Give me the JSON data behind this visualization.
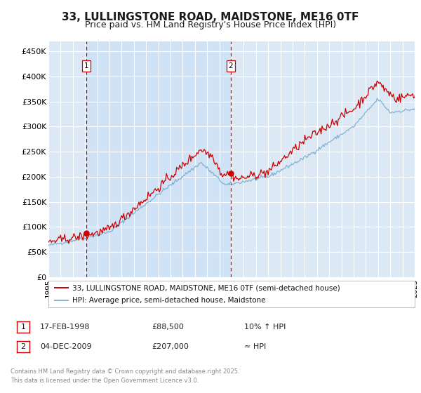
{
  "title": "33, LULLINGSTONE ROAD, MAIDSTONE, ME16 0TF",
  "subtitle": "Price paid vs. HM Land Registry's House Price Index (HPI)",
  "background_color": "#ffffff",
  "plot_bg_color": "#dce9f5",
  "grid_color": "#ffffff",
  "ylim": [
    0,
    470000
  ],
  "yticks": [
    0,
    50000,
    100000,
    150000,
    200000,
    250000,
    300000,
    350000,
    400000,
    450000
  ],
  "ytick_labels": [
    "£0",
    "£50K",
    "£100K",
    "£150K",
    "£200K",
    "£250K",
    "£300K",
    "£350K",
    "£400K",
    "£450K"
  ],
  "x_start_year": 1995,
  "x_end_year": 2025,
  "vline1_year": 1998.12,
  "vline2_year": 2009.92,
  "marker1_year": 1998.12,
  "marker1_value": 88500,
  "marker2_year": 2009.92,
  "marker2_value": 207000,
  "line1_color": "#cc0000",
  "line2_color": "#7fb3d3",
  "vline_color": "#cc0000",
  "shade_color": "#cce0f5",
  "marker_color": "#cc0000",
  "legend_line1": "33, LULLINGSTONE ROAD, MAIDSTONE, ME16 0TF (semi-detached house)",
  "legend_line2": "HPI: Average price, semi-detached house, Maidstone",
  "annotation1_label": "1",
  "annotation1_date": "17-FEB-1998",
  "annotation1_price": "£88,500",
  "annotation1_hpi": "10% ↑ HPI",
  "annotation2_label": "2",
  "annotation2_date": "04-DEC-2009",
  "annotation2_price": "£207,000",
  "annotation2_hpi": "≈ HPI",
  "footer": "Contains HM Land Registry data © Crown copyright and database right 2025.\nThis data is licensed under the Open Government Licence v3.0.",
  "title_fontsize": 11,
  "subtitle_fontsize": 9,
  "tick_fontsize": 8,
  "legend_fontsize": 7.5,
  "annotation_fontsize": 8,
  "footer_fontsize": 6
}
